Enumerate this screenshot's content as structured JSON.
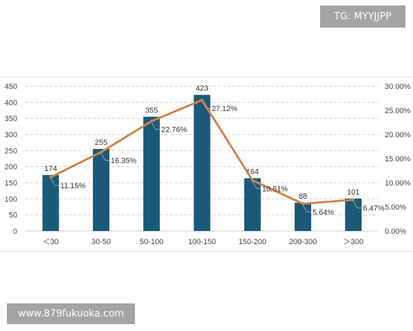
{
  "watermarks": {
    "top": "TG: MYYJJPP",
    "bottom": "www.879fukuoka.com"
  },
  "colors": {
    "bar": "#1a5a78",
    "line": "#d4804a",
    "grid": "#cfcfcf",
    "leader": "#9aa9b2"
  },
  "chart_data": {
    "type": "bar",
    "categories": [
      "＜30",
      "30-50",
      "50-100",
      "100-150",
      "150-200",
      "200-300",
      "＞300"
    ],
    "series": [
      {
        "type": "bar",
        "axis": "left",
        "values": [
          174,
          255,
          355,
          423,
          164,
          88,
          101
        ],
        "labels": [
          "174",
          "255",
          "355",
          "423",
          "164",
          "88",
          "101"
        ]
      },
      {
        "type": "line",
        "axis": "right",
        "values": [
          11.15,
          16.35,
          22.76,
          27.12,
          10.51,
          5.64,
          6.47
        ],
        "labels": [
          "11.15%",
          "16.35%",
          "22.76%",
          "27.12%",
          "10.51%",
          "5.64%",
          "6.47%"
        ]
      }
    ],
    "ylim_left": [
      0,
      450
    ],
    "yticks_left": [
      "0",
      "50",
      "100",
      "150",
      "200",
      "250",
      "300",
      "350",
      "400",
      "450"
    ],
    "ylim_right": [
      0,
      30
    ],
    "yticks_right": [
      "0.00%",
      "5.00%",
      "10.00%",
      "15.00%",
      "20.00%",
      "25.00%",
      "30.00%"
    ],
    "grid": "horizontal-dashed",
    "legend": "none"
  }
}
